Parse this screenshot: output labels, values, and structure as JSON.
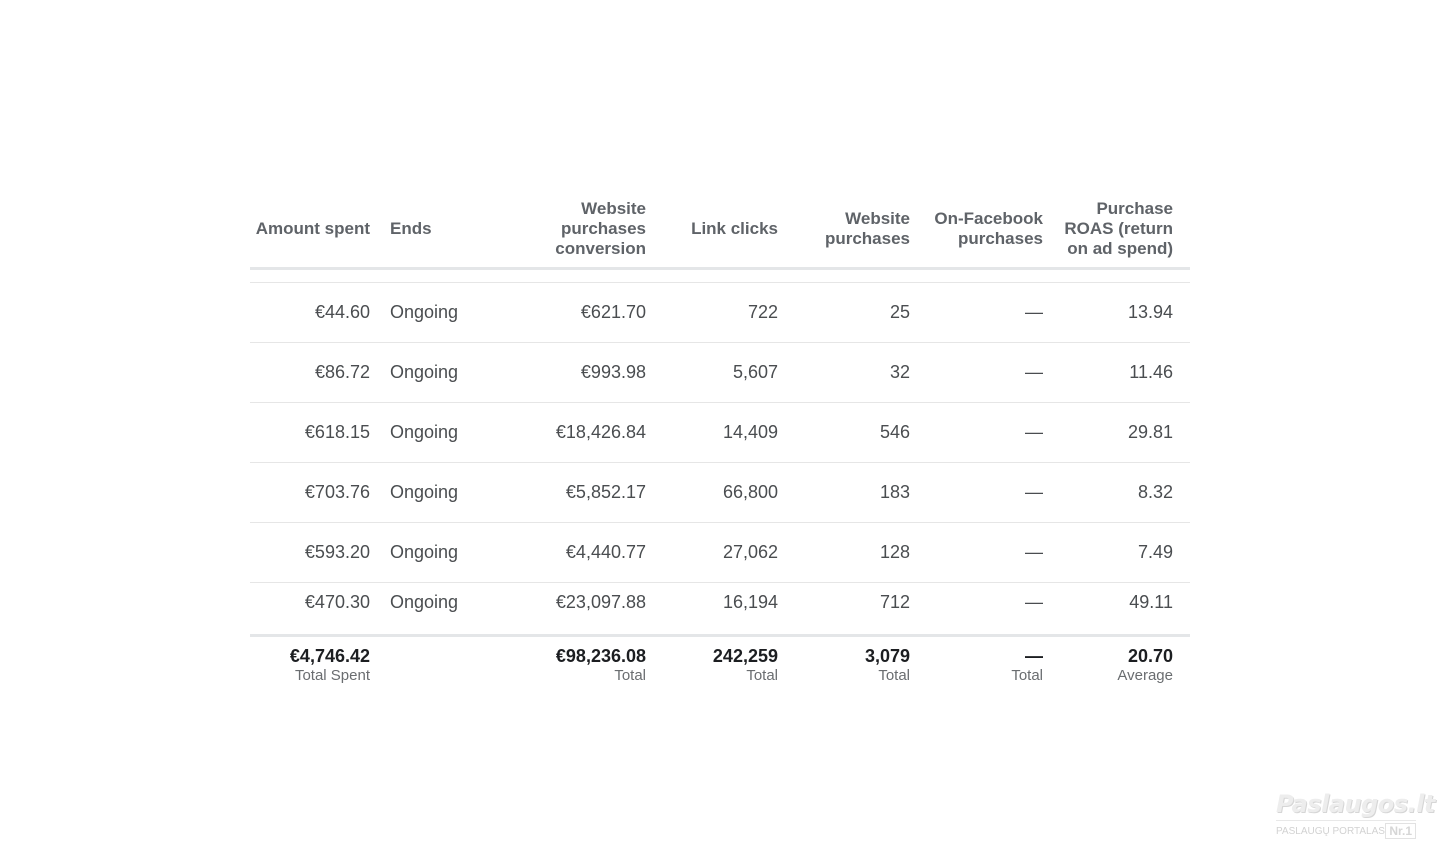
{
  "columns": [
    "Amount spent",
    "Ends",
    "Website purchases conversion",
    "Link clicks",
    "Website purchases",
    "On-Facebook purchases",
    "Purchase ROAS (return on ad spend)"
  ],
  "header_lines": {
    "website_conv": [
      "Website",
      "purchases",
      "conversion"
    ],
    "website_purchases": [
      "Website",
      "purchases"
    ],
    "onfb": [
      "On-Facebook",
      "purchases"
    ],
    "roas": [
      "Purchase",
      "ROAS (return",
      "on ad spend)"
    ]
  },
  "rows": [
    {
      "spent": "€44.60",
      "ends": "Ongoing",
      "conv": "€621.70",
      "clicks": "722",
      "purchases": "25",
      "onfb": "—",
      "roas": "13.94"
    },
    {
      "spent": "€86.72",
      "ends": "Ongoing",
      "conv": "€993.98",
      "clicks": "5,607",
      "purchases": "32",
      "onfb": "—",
      "roas": "11.46"
    },
    {
      "spent": "€618.15",
      "ends": "Ongoing",
      "conv": "€18,426.84",
      "clicks": "14,409",
      "purchases": "546",
      "onfb": "—",
      "roas": "29.81"
    },
    {
      "spent": "€703.76",
      "ends": "Ongoing",
      "conv": "€5,852.17",
      "clicks": "66,800",
      "purchases": "183",
      "onfb": "—",
      "roas": "8.32"
    },
    {
      "spent": "€593.20",
      "ends": "Ongoing",
      "conv": "€4,440.77",
      "clicks": "27,062",
      "purchases": "128",
      "onfb": "—",
      "roas": "7.49"
    },
    {
      "spent": "€470.30",
      "ends": "Ongoing",
      "conv": "€23,097.88",
      "clicks": "16,194",
      "purchases": "712",
      "onfb": "—",
      "roas": "49.11"
    }
  ],
  "totals": {
    "spent": {
      "value": "€4,746.42",
      "label": "Total Spent"
    },
    "conv": {
      "value": "€98,236.08",
      "label": "Total"
    },
    "clicks": {
      "value": "242,259",
      "label": "Total"
    },
    "purchases": {
      "value": "3,079",
      "label": "Total"
    },
    "onfb": {
      "value": "—",
      "label": "Total"
    },
    "roas": {
      "value": "20.70",
      "label": "Average"
    }
  },
  "watermark": {
    "title": "Paslaugos.lt",
    "subtitle": "PASLAUGŲ PORTALAS",
    "badge": "Nr.1"
  }
}
